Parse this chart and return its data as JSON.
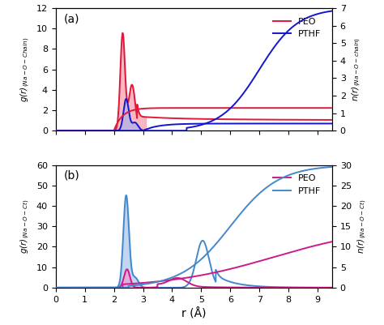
{
  "panel_a": {
    "title": "(a)",
    "ylabel_left": "g(r)$_{(Na - O - Chain)}$",
    "ylabel_right": "n(r)$_{(Na - O - chain)}$",
    "ylim_left": [
      0,
      12
    ],
    "ylim_right": [
      0,
      7
    ],
    "yticks_left": [
      0,
      2,
      4,
      6,
      8,
      10,
      12
    ],
    "yticks_right": [
      0,
      1,
      2,
      3,
      4,
      5,
      6,
      7
    ],
    "xlim": [
      0,
      9.5
    ],
    "xticks": [
      0,
      1,
      2,
      3,
      4,
      5,
      6,
      7,
      8,
      9
    ],
    "peo_color": "#e0183a",
    "pthf_color": "#1515cc",
    "peo_fill_color": "#f5a0b0",
    "pthf_fill_color": "#b0b0e8",
    "legend_peo": "#e0183a",
    "legend_pthf": "#1515cc"
  },
  "panel_b": {
    "title": "(b)",
    "ylabel_left": "g(r)$_{(Na - O - Ct)}$",
    "ylabel_right": "n(r)$_{(Na - O - Ct)}$",
    "ylim_left": [
      0,
      60
    ],
    "ylim_right": [
      0,
      30
    ],
    "yticks_left": [
      0,
      10,
      20,
      30,
      40,
      50,
      60
    ],
    "yticks_right": [
      0,
      5,
      10,
      15,
      20,
      25,
      30
    ],
    "xlim": [
      0,
      9.5
    ],
    "xticks": [
      0,
      1,
      2,
      3,
      4,
      5,
      6,
      7,
      8,
      9
    ],
    "peo_color": "#cc1a8c",
    "pthf_color": "#4488cc",
    "peo_fill_color": "#f0a0d0",
    "pthf_fill_color": "#a0c0e8",
    "legend_peo": "#cc1a8c",
    "legend_pthf": "#4488cc"
  },
  "xlabel": "r (Å)"
}
